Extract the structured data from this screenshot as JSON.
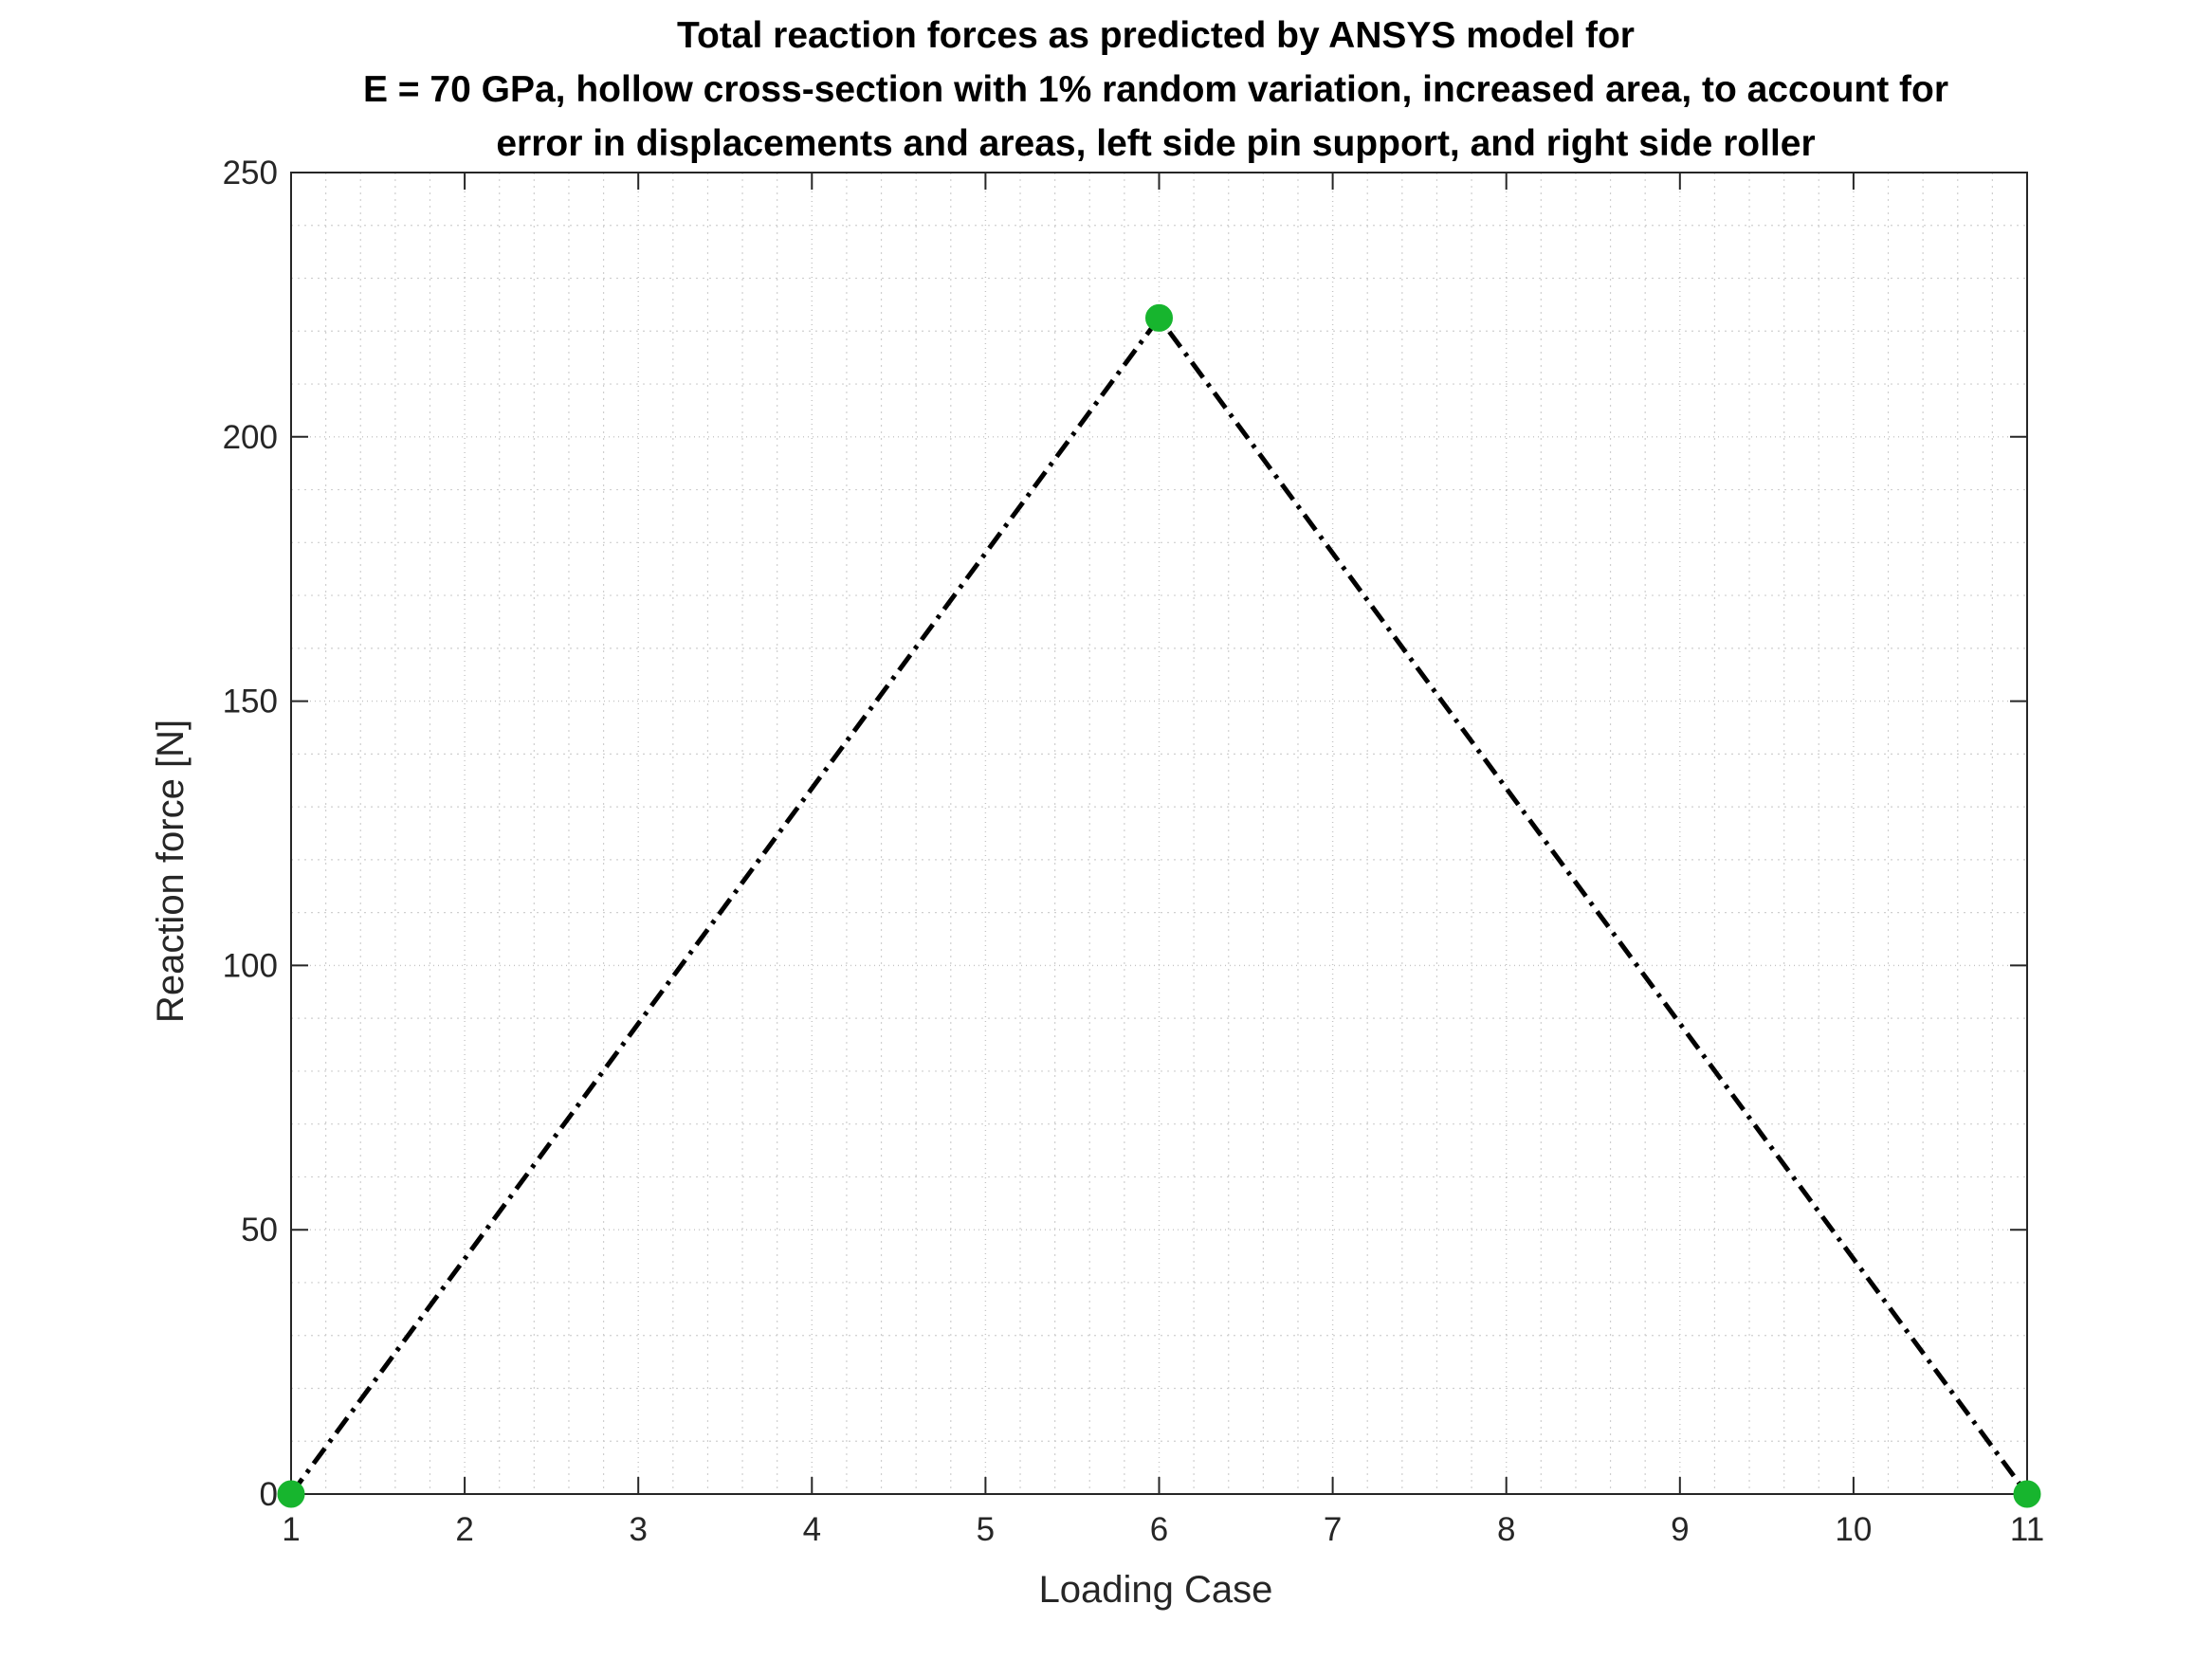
{
  "chart_data": {
    "type": "line",
    "title_lines": [
      "Total reaction forces as predicted by ANSYS model for",
      "E = 70 GPa, hollow cross-section with 1% random variation, increased area, to account for",
      "error in displacements and areas, left side pin support, and right side roller"
    ],
    "xlabel": "Loading Case",
    "ylabel": "Reaction force [N]",
    "xlim": [
      1,
      11
    ],
    "ylim": [
      0,
      250
    ],
    "xticks": [
      "1",
      "2",
      "3",
      "4",
      "5",
      "6",
      "7",
      "8",
      "9",
      "10",
      "11"
    ],
    "yticks": [
      "0",
      "50",
      "100",
      "150",
      "200",
      "250"
    ],
    "grid": true,
    "minor_grid": true,
    "series": [
      {
        "x": [
          1,
          6,
          11
        ],
        "y": [
          0,
          222.5,
          0
        ],
        "line_style": "dash-dot",
        "line_color": "#000000",
        "marker": "circle",
        "marker_color": "#17b52e"
      }
    ]
  }
}
